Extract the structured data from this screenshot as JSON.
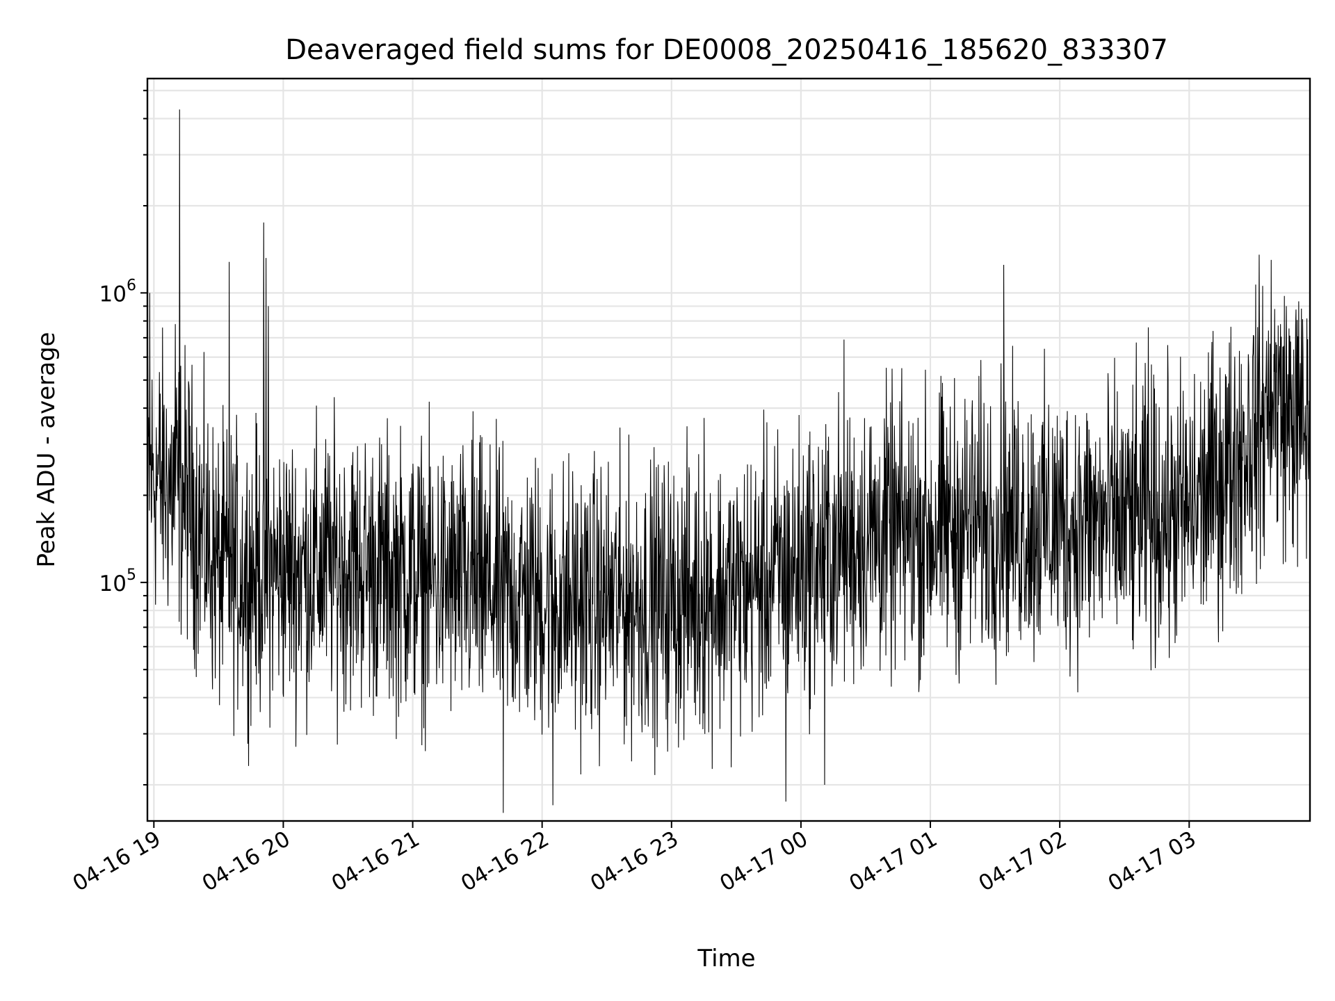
{
  "chart_data": {
    "type": "line",
    "title": "Deaveraged field sums for DE0008_20250416_185620_833307",
    "xlabel": "Time",
    "ylabel": "Peak ADU - average",
    "yscale": "log",
    "ylim": [
      15000,
      5500000
    ],
    "xlim": [
      "2025-04-16 18:57",
      "2025-04-17 03:56"
    ],
    "grid": true,
    "x_ticks": [
      {
        "t": "2025-04-16 19:00",
        "label": "04-16 19"
      },
      {
        "t": "2025-04-16 20:00",
        "label": "04-16 20"
      },
      {
        "t": "2025-04-16 21:00",
        "label": "04-16 21"
      },
      {
        "t": "2025-04-16 22:00",
        "label": "04-16 22"
      },
      {
        "t": "2025-04-16 23:00",
        "label": "04-16 23"
      },
      {
        "t": "2025-04-17 00:00",
        "label": "04-17 00"
      },
      {
        "t": "2025-04-17 01:00",
        "label": "04-17 01"
      },
      {
        "t": "2025-04-17 02:00",
        "label": "04-17 02"
      },
      {
        "t": "2025-04-17 03:00",
        "label": "04-17 03"
      }
    ],
    "y_ticks": [
      {
        "value": 100000,
        "base": "10",
        "exp": "5"
      },
      {
        "value": 1000000,
        "base": "10",
        "exp": "6"
      }
    ],
    "series_color": "#000000",
    "x_envelope": [
      "2025-04-16 18:57",
      "2025-04-16 19:15",
      "2025-04-16 19:30",
      "2025-04-16 20:00",
      "2025-04-16 20:30",
      "2025-04-16 21:00",
      "2025-04-16 21:30",
      "2025-04-16 22:00",
      "2025-04-16 22:30",
      "2025-04-16 23:00",
      "2025-04-16 23:30",
      "2025-04-17 00:00",
      "2025-04-17 00:30",
      "2025-04-17 01:00",
      "2025-04-17 01:30",
      "2025-04-17 02:00",
      "2025-04-17 02:30",
      "2025-04-17 03:00",
      "2025-04-17 03:20",
      "2025-04-17 03:40",
      "2025-04-17 03:56"
    ],
    "y_envelope": [
      240000,
      200000,
      110000,
      110000,
      115000,
      105000,
      95000,
      88000,
      85000,
      88000,
      92000,
      115000,
      145000,
      150000,
      165000,
      160000,
      160000,
      175000,
      260000,
      420000,
      330000
    ],
    "spikes": [
      {
        "t": "2025-04-16 18:58",
        "value": 1000000
      },
      {
        "t": "2025-04-16 19:10",
        "value": 780000
      },
      {
        "t": "2025-04-16 19:12",
        "value": 4300000
      },
      {
        "t": "2025-04-16 19:35",
        "value": 1280000
      },
      {
        "t": "2025-04-16 19:51",
        "value": 1750000
      },
      {
        "t": "2025-04-16 19:52",
        "value": 1320000
      },
      {
        "t": "2025-04-16 19:53",
        "value": 900000
      },
      {
        "t": "2025-04-16 21:28",
        "value": 390000
      },
      {
        "t": "2025-04-16 23:15",
        "value": 370000
      },
      {
        "t": "2025-04-17 00:20",
        "value": 690000
      },
      {
        "t": "2025-04-17 01:34",
        "value": 1250000
      },
      {
        "t": "2025-04-17 02:41",
        "value": 760000
      },
      {
        "t": "2025-04-17 03:38",
        "value": 1300000
      },
      {
        "t": "2025-04-17 03:45",
        "value": 900000
      },
      {
        "t": "2025-04-16 21:42",
        "value": 16000
      },
      {
        "t": "2025-04-16 22:05",
        "value": 17000
      },
      {
        "t": "2025-04-16 23:53",
        "value": 17500
      },
      {
        "t": "2025-04-17 00:11",
        "value": 20000
      }
    ]
  }
}
